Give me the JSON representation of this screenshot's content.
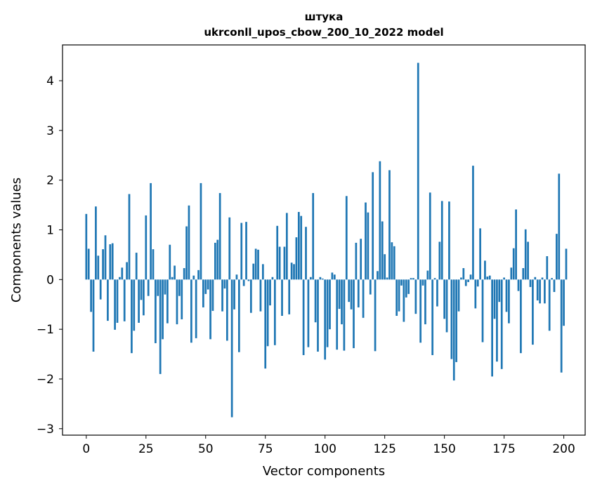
{
  "chart_data": {
    "type": "bar",
    "title_line1": "штука",
    "title_line2": "ukrconll_upos_cbow_200_10_2022 model",
    "xlabel": "Vector components",
    "ylabel": "Components values",
    "xlim": [
      -9.95,
      208.95
    ],
    "ylim": [
      -3.13,
      4.72
    ],
    "x_ticks": [
      0,
      25,
      50,
      75,
      100,
      125,
      150,
      175,
      200
    ],
    "x_tick_labels": [
      "0",
      "25",
      "50",
      "75",
      "100",
      "125",
      "150",
      "175",
      "200"
    ],
    "y_ticks": [
      -3,
      -2,
      -1,
      0,
      1,
      2,
      3,
      4
    ],
    "y_tick_labels": [
      "−3",
      "−2",
      "−1",
      "0",
      "1",
      "2",
      "3",
      "4"
    ],
    "bar_color": "#1f77b4",
    "grid": false,
    "values": [
      1.32,
      0.62,
      -0.65,
      -1.45,
      1.47,
      0.48,
      -0.4,
      0.61,
      0.89,
      -0.83,
      0.71,
      0.73,
      -1.01,
      -0.87,
      0.05,
      0.24,
      -0.84,
      0.35,
      1.72,
      -1.48,
      -1.03,
      0.54,
      -0.87,
      -0.41,
      -0.72,
      1.29,
      -0.33,
      1.94,
      0.61,
      -1.28,
      -0.33,
      -1.9,
      -1.2,
      -0.3,
      -0.88,
      0.7,
      0.05,
      0.28,
      -0.9,
      -0.33,
      -0.8,
      0.23,
      1.07,
      1.49,
      -1.27,
      0.08,
      -1.18,
      0.19,
      1.94,
      -0.56,
      -0.29,
      -0.2,
      -1.2,
      -0.63,
      0.74,
      0.8,
      1.74,
      -0.64,
      -0.18,
      -1.23,
      1.25,
      -2.77,
      -0.6,
      0.1,
      -1.46,
      1.14,
      -0.13,
      1.16,
      -0.03,
      -0.67,
      0.32,
      0.62,
      0.6,
      -0.64,
      0.31,
      -1.79,
      -1.34,
      -0.52,
      0.05,
      -1.32,
      1.08,
      0.66,
      -0.73,
      0.66,
      1.34,
      -0.7,
      0.34,
      0.31,
      0.85,
      1.36,
      1.28,
      -1.52,
      1.06,
      -1.36,
      0.05,
      1.74,
      -0.86,
      -1.45,
      0.05,
      0.02,
      -1.61,
      -1.36,
      -1.0,
      0.14,
      0.1,
      -1.41,
      -0.59,
      -0.9,
      -1.43,
      1.68,
      -0.45,
      -0.6,
      -1.38,
      0.74,
      -0.56,
      0.82,
      -0.77,
      1.55,
      1.35,
      -0.3,
      2.16,
      -1.44,
      0.17,
      2.38,
      1.17,
      0.51,
      0.04,
      2.2,
      0.75,
      0.67,
      -0.73,
      -0.64,
      -0.12,
      -0.85,
      -0.36,
      -0.29,
      0.03,
      0.03,
      -0.69,
      4.36,
      -1.27,
      -0.12,
      -0.9,
      0.18,
      1.75,
      -1.52,
      0.03,
      -0.54,
      0.76,
      1.58,
      -0.79,
      -1.06,
      1.57,
      -1.6,
      -2.03,
      -1.66,
      -0.64,
      0.04,
      0.23,
      -0.13,
      -0.05,
      0.1,
      2.29,
      -0.58,
      -0.14,
      1.03,
      -1.26,
      0.38,
      0.06,
      0.08,
      -1.95,
      -0.79,
      -1.65,
      -0.45,
      -1.8,
      0.04,
      -0.65,
      -0.88,
      0.24,
      0.63,
      1.41,
      -0.23,
      -1.48,
      0.23,
      1.01,
      0.76,
      -0.15,
      -1.31,
      0.05,
      -0.42,
      -0.48,
      0.04,
      -0.48,
      0.47,
      -1.03,
      0.03,
      -0.25,
      0.92,
      2.13,
      -1.87,
      -0.93,
      0.62
    ]
  }
}
